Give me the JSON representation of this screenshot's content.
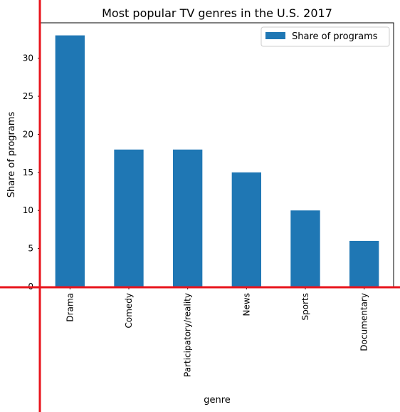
{
  "chart_data": {
    "type": "bar",
    "title": "Most popular TV genres in the U.S. 2017",
    "xlabel": "genre",
    "ylabel": "Share of programs",
    "categories": [
      "Drama",
      "Comedy",
      "Participatory/reality",
      "News",
      "Sports",
      "Documentary"
    ],
    "series": [
      {
        "name": "Share of programs",
        "values": [
          33,
          18,
          18,
          15,
          10,
          6
        ],
        "color": "#1f77b4"
      }
    ],
    "ylim": [
      0,
      34.65
    ],
    "yticks": [
      "0",
      "5",
      "10",
      "15",
      "20",
      "25",
      "30"
    ],
    "legend": "top-right",
    "grid": false,
    "overlay_color": "#e8141c"
  }
}
